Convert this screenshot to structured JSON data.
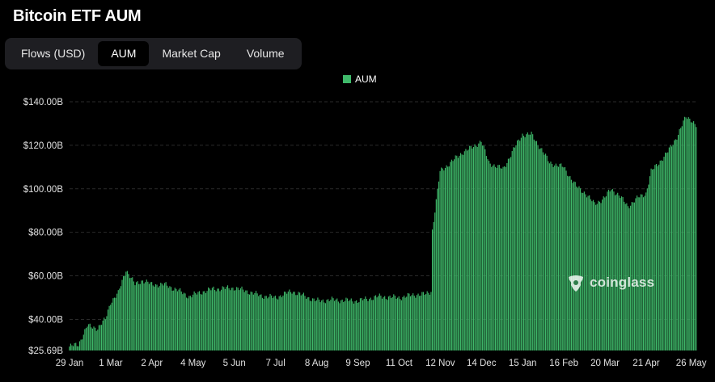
{
  "title": "Bitcoin ETF AUM",
  "tabs": [
    {
      "label": "Flows (USD)",
      "active": false
    },
    {
      "label": "AUM",
      "active": true
    },
    {
      "label": "Market Cap",
      "active": false
    },
    {
      "label": "Volume",
      "active": false
    }
  ],
  "watermark": "coinglass",
  "colors": {
    "bar": "#3fb96a",
    "background": "#000000",
    "grid": "#2a2a2a"
  },
  "chart_data": {
    "type": "bar",
    "title": "Bitcoin ETF AUM",
    "legend": {
      "position": "top-center",
      "entries": [
        "AUM"
      ]
    },
    "series": [
      {
        "name": "AUM"
      }
    ],
    "ylim": [
      25.69,
      140
    ],
    "y_ticks": [
      {
        "value": 25.69,
        "label": "$25.69B"
      },
      {
        "value": 40,
        "label": "$40.00B"
      },
      {
        "value": 60,
        "label": "$60.00B"
      },
      {
        "value": 80,
        "label": "$80.00B"
      },
      {
        "value": 100,
        "label": "$100.00B"
      },
      {
        "value": 120,
        "label": "$120.00B"
      },
      {
        "value": 140,
        "label": "$140.00B"
      }
    ],
    "x_ticks": [
      "29 Jan",
      "1 Mar",
      "2 Apr",
      "4 May",
      "5 Jun",
      "7 Jul",
      "8 Aug",
      "9 Sep",
      "11 Oct",
      "12 Nov",
      "14 Dec",
      "15 Jan",
      "16 Feb",
      "20 Mar",
      "21 Apr",
      "26 May"
    ],
    "grid": true,
    "keypoints": [
      {
        "date": "29 Jan",
        "value": 27.5
      },
      {
        "date": "5 Feb",
        "value": 28.5
      },
      {
        "date": "12 Feb",
        "value": 37
      },
      {
        "date": "20 Feb",
        "value": 36
      },
      {
        "date": "26 Feb",
        "value": 40
      },
      {
        "date": "1 Mar",
        "value": 48
      },
      {
        "date": "7 Mar",
        "value": 52
      },
      {
        "date": "13 Mar",
        "value": 63
      },
      {
        "date": "20 Mar",
        "value": 56
      },
      {
        "date": "26 Mar",
        "value": 58
      },
      {
        "date": "2 Apr",
        "value": 56
      },
      {
        "date": "12 Apr",
        "value": 56
      },
      {
        "date": "22 Apr",
        "value": 53.5
      },
      {
        "date": "1 May",
        "value": 50.5
      },
      {
        "date": "10 May",
        "value": 52.5
      },
      {
        "date": "20 May",
        "value": 54
      },
      {
        "date": "5 Jun",
        "value": 54.5
      },
      {
        "date": "15 Jun",
        "value": 53
      },
      {
        "date": "25 Jun",
        "value": 51
      },
      {
        "date": "7 Jul",
        "value": 50
      },
      {
        "date": "20 Jul",
        "value": 53
      },
      {
        "date": "8 Aug",
        "value": 48.5
      },
      {
        "date": "20 Aug",
        "value": 49
      },
      {
        "date": "9 Sep",
        "value": 48.5
      },
      {
        "date": "25 Sep",
        "value": 50.5
      },
      {
        "date": "11 Oct",
        "value": 50
      },
      {
        "date": "25 Oct",
        "value": 51.5
      },
      {
        "date": "1 Nov",
        "value": 51.5
      },
      {
        "date": "5 Nov",
        "value": 53
      },
      {
        "date": "6 Nov",
        "value": 81
      },
      {
        "date": "12 Nov",
        "value": 108
      },
      {
        "date": "22 Nov",
        "value": 113
      },
      {
        "date": "30 Nov",
        "value": 117
      },
      {
        "date": "7 Dec",
        "value": 119
      },
      {
        "date": "14 Dec",
        "value": 122
      },
      {
        "date": "20 Dec",
        "value": 112
      },
      {
        "date": "31 Dec",
        "value": 109
      },
      {
        "date": "8 Jan",
        "value": 118
      },
      {
        "date": "15 Jan",
        "value": 125
      },
      {
        "date": "22 Jan",
        "value": 125
      },
      {
        "date": "30 Jan",
        "value": 118
      },
      {
        "date": "5 Feb",
        "value": 112
      },
      {
        "date": "16 Feb",
        "value": 110
      },
      {
        "date": "26 Feb",
        "value": 101
      },
      {
        "date": "5 Mar",
        "value": 98
      },
      {
        "date": "12 Mar",
        "value": 93
      },
      {
        "date": "20 Mar",
        "value": 96
      },
      {
        "date": "25 Mar",
        "value": 100
      },
      {
        "date": "31 Mar",
        "value": 97
      },
      {
        "date": "7 Apr",
        "value": 92
      },
      {
        "date": "15 Apr",
        "value": 96
      },
      {
        "date": "21 Apr",
        "value": 98
      },
      {
        "date": "25 Apr",
        "value": 108
      },
      {
        "date": "1 May",
        "value": 112
      },
      {
        "date": "8 May",
        "value": 117
      },
      {
        "date": "15 May",
        "value": 124
      },
      {
        "date": "22 May",
        "value": 133
      },
      {
        "date": "26 May",
        "value": 132
      },
      {
        "date": "30 May",
        "value": 129
      }
    ]
  }
}
